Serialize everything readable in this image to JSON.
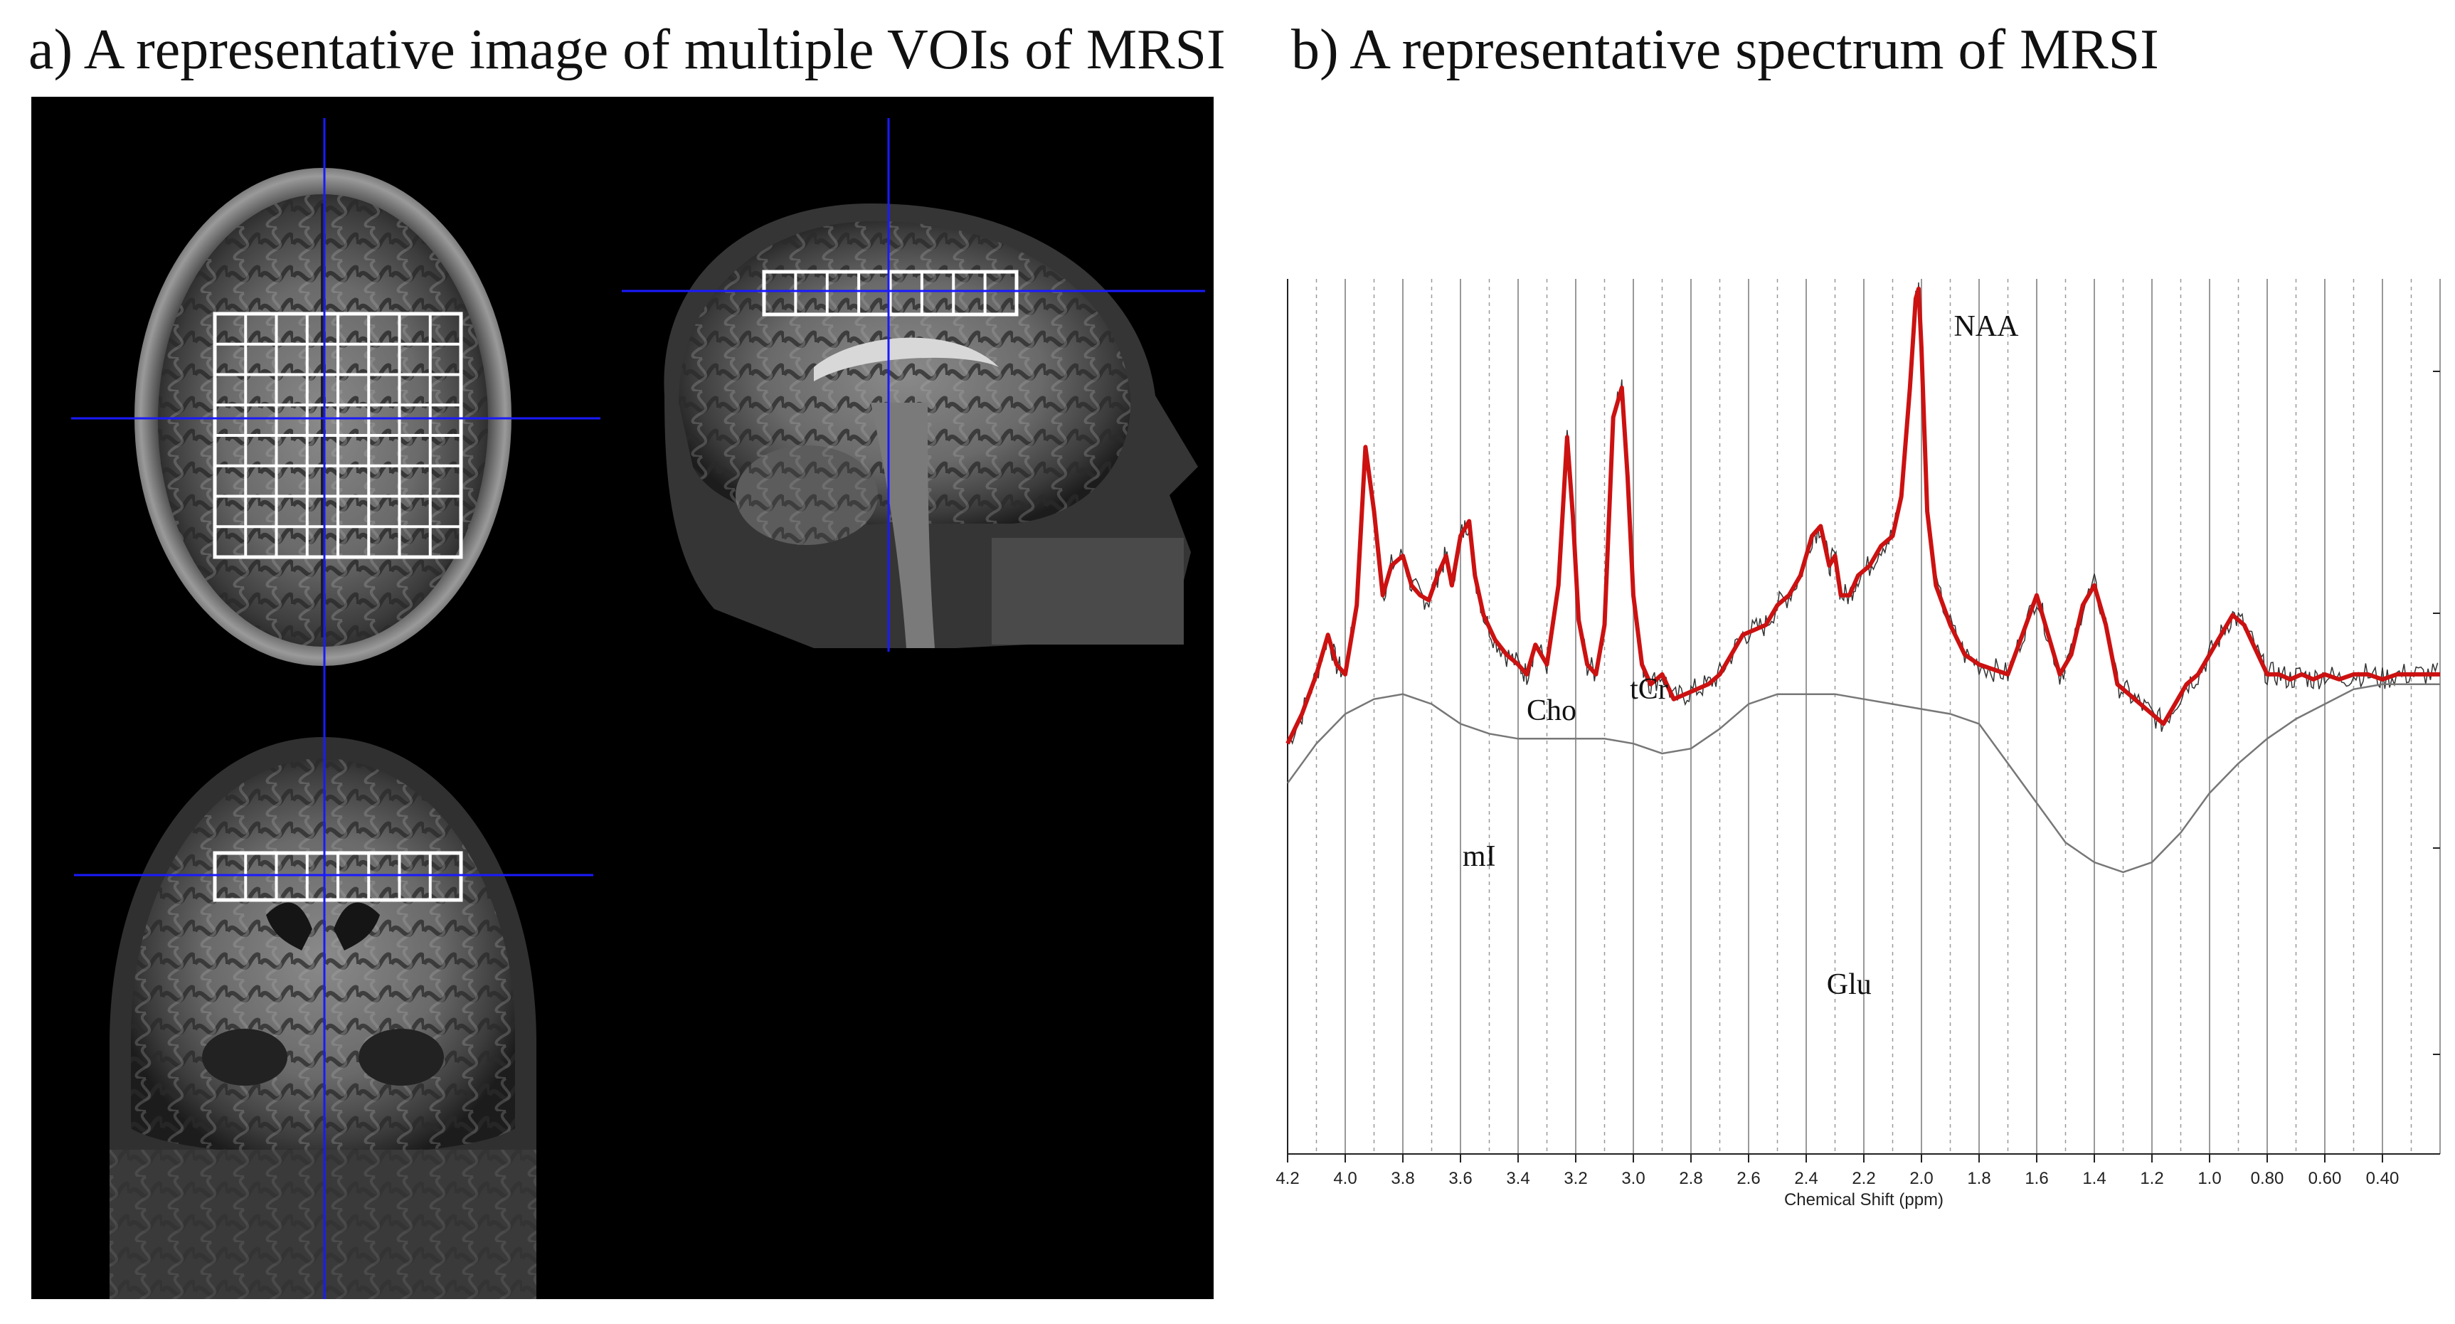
{
  "figure": {
    "panel_a_title": "a) A representative image of multiple VOIs of MRSI",
    "panel_b_title": "b) A representative spectrum of MRSI"
  },
  "colors": {
    "crosshair": "#1a1aff",
    "voi_grid": "#ffffff",
    "fit_line": "#cc1111",
    "raw_line": "#333333",
    "baseline": "#777777",
    "gridline": "#999999"
  },
  "chart_data": {
    "type": "line",
    "title": "",
    "xlabel": "Chemical Shift (ppm)",
    "ylabel": "",
    "x_reversed": true,
    "xlim": [
      4.2,
      0.2
    ],
    "grid": true,
    "x_ticks": [
      "4.2",
      "4.0",
      "3.8",
      "3.6",
      "3.4",
      "3.2",
      "3.0",
      "2.8",
      "2.6",
      "2.4",
      "2.2",
      "2.0",
      "1.8",
      "1.6",
      "1.4",
      "1.2",
      "1.0",
      "0.80",
      "0.60",
      "0.40"
    ],
    "peak_labels": [
      {
        "label": "NAA",
        "ppm": 2.01
      },
      {
        "label": "tCr",
        "ppm": 3.02
      },
      {
        "label": "Cho",
        "ppm": 3.21
      },
      {
        "label": "mI",
        "ppm": 3.56
      },
      {
        "label": "Glu",
        "ppm": 2.35
      }
    ],
    "series": [
      {
        "name": "",
        "role": "fit",
        "x": [
          4.2,
          4.15,
          4.1,
          4.06,
          4.03,
          4.0,
          3.96,
          3.93,
          3.9,
          3.87,
          3.84,
          3.8,
          3.77,
          3.74,
          3.71,
          3.68,
          3.65,
          3.63,
          3.6,
          3.57,
          3.55,
          3.52,
          3.48,
          3.44,
          3.4,
          3.37,
          3.34,
          3.3,
          3.26,
          3.23,
          3.21,
          3.19,
          3.16,
          3.13,
          3.1,
          3.07,
          3.04,
          3.02,
          3.0,
          2.97,
          2.94,
          2.9,
          2.86,
          2.82,
          2.78,
          2.74,
          2.7,
          2.66,
          2.62,
          2.58,
          2.54,
          2.5,
          2.46,
          2.42,
          2.38,
          2.35,
          2.32,
          2.3,
          2.28,
          2.25,
          2.22,
          2.18,
          2.14,
          2.1,
          2.07,
          2.04,
          2.02,
          2.01,
          2.0,
          1.98,
          1.95,
          1.9,
          1.85,
          1.8,
          1.75,
          1.7,
          1.65,
          1.6,
          1.56,
          1.52,
          1.48,
          1.44,
          1.4,
          1.36,
          1.32,
          1.28,
          1.24,
          1.2,
          1.16,
          1.12,
          1.08,
          1.04,
          1.0,
          0.96,
          0.92,
          0.88,
          0.84,
          0.8,
          0.76,
          0.72,
          0.68,
          0.64,
          0.6,
          0.55,
          0.5,
          0.45,
          0.4,
          0.35,
          0.3,
          0.25,
          0.2
        ],
        "y": [
          0.08,
          0.14,
          0.22,
          0.3,
          0.24,
          0.22,
          0.36,
          0.68,
          0.55,
          0.38,
          0.44,
          0.46,
          0.4,
          0.38,
          0.37,
          0.42,
          0.46,
          0.4,
          0.5,
          0.53,
          0.42,
          0.34,
          0.29,
          0.26,
          0.24,
          0.22,
          0.28,
          0.24,
          0.4,
          0.7,
          0.54,
          0.33,
          0.24,
          0.22,
          0.32,
          0.74,
          0.8,
          0.62,
          0.38,
          0.24,
          0.2,
          0.22,
          0.17,
          0.18,
          0.19,
          0.2,
          0.22,
          0.26,
          0.3,
          0.31,
          0.32,
          0.36,
          0.38,
          0.42,
          0.5,
          0.52,
          0.44,
          0.46,
          0.38,
          0.38,
          0.42,
          0.44,
          0.48,
          0.5,
          0.58,
          0.8,
          0.98,
          1.0,
          0.88,
          0.55,
          0.4,
          0.32,
          0.26,
          0.24,
          0.23,
          0.22,
          0.3,
          0.38,
          0.3,
          0.22,
          0.26,
          0.36,
          0.4,
          0.32,
          0.2,
          0.18,
          0.16,
          0.14,
          0.12,
          0.16,
          0.2,
          0.22,
          0.26,
          0.3,
          0.34,
          0.32,
          0.27,
          0.22,
          0.22,
          0.21,
          0.22,
          0.21,
          0.22,
          0.21,
          0.22,
          0.22,
          0.21,
          0.22,
          0.22,
          0.22,
          0.22
        ]
      },
      {
        "name": "",
        "role": "baseline",
        "x": [
          4.2,
          4.1,
          4.0,
          3.9,
          3.8,
          3.7,
          3.6,
          3.5,
          3.4,
          3.3,
          3.2,
          3.1,
          3.0,
          2.9,
          2.8,
          2.7,
          2.6,
          2.5,
          2.4,
          2.3,
          2.2,
          2.1,
          2.0,
          1.9,
          1.8,
          1.7,
          1.6,
          1.5,
          1.4,
          1.3,
          1.2,
          1.1,
          1.0,
          0.9,
          0.8,
          0.7,
          0.6,
          0.5,
          0.4,
          0.3,
          0.2
        ],
        "y": [
          0.0,
          0.08,
          0.14,
          0.17,
          0.18,
          0.16,
          0.12,
          0.1,
          0.09,
          0.09,
          0.09,
          0.09,
          0.08,
          0.06,
          0.07,
          0.11,
          0.16,
          0.18,
          0.18,
          0.18,
          0.17,
          0.16,
          0.15,
          0.14,
          0.12,
          0.04,
          -0.04,
          -0.12,
          -0.16,
          -0.18,
          -0.16,
          -0.1,
          -0.02,
          0.04,
          0.09,
          0.13,
          0.16,
          0.19,
          0.2,
          0.2,
          0.2
        ]
      }
    ]
  }
}
